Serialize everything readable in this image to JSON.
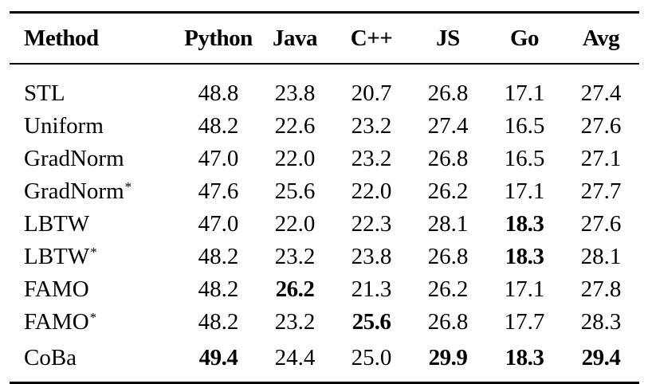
{
  "table": {
    "columns": [
      "Method",
      "Python",
      "Java",
      "C++",
      "JS",
      "Go",
      "Avg"
    ],
    "rows": [
      {
        "method": "STL",
        "star": "",
        "values": [
          "48.8",
          "23.8",
          "20.7",
          "26.8",
          "17.1",
          "27.4"
        ],
        "bold": [
          false,
          false,
          false,
          false,
          false,
          false
        ]
      },
      {
        "method": "Uniform",
        "star": "",
        "values": [
          "48.2",
          "22.6",
          "23.2",
          "27.4",
          "16.5",
          "27.6"
        ],
        "bold": [
          false,
          false,
          false,
          false,
          false,
          false
        ]
      },
      {
        "method": "GradNorm",
        "star": "",
        "values": [
          "47.0",
          "22.0",
          "23.2",
          "26.8",
          "16.5",
          "27.1"
        ],
        "bold": [
          false,
          false,
          false,
          false,
          false,
          false
        ]
      },
      {
        "method": "GradNorm",
        "star": "*",
        "values": [
          "47.6",
          "25.6",
          "22.0",
          "26.2",
          "17.1",
          "27.7"
        ],
        "bold": [
          false,
          false,
          false,
          false,
          false,
          false
        ]
      },
      {
        "method": "LBTW",
        "star": "",
        "values": [
          "47.0",
          "22.0",
          "22.3",
          "28.1",
          "18.3",
          "27.6"
        ],
        "bold": [
          false,
          false,
          false,
          false,
          true,
          false
        ]
      },
      {
        "method": "LBTW",
        "star": "*",
        "values": [
          "48.2",
          "23.2",
          "23.8",
          "26.8",
          "18.3",
          "28.1"
        ],
        "bold": [
          false,
          false,
          false,
          false,
          true,
          false
        ]
      },
      {
        "method": "FAMO",
        "star": "",
        "values": [
          "48.2",
          "26.2",
          "21.3",
          "26.2",
          "17.1",
          "27.8"
        ],
        "bold": [
          false,
          true,
          false,
          false,
          false,
          false
        ]
      },
      {
        "method": "FAMO",
        "star": "*",
        "values": [
          "48.2",
          "23.2",
          "25.6",
          "26.8",
          "17.7",
          "28.3"
        ],
        "bold": [
          false,
          false,
          true,
          false,
          false,
          false
        ]
      },
      {
        "method": "CoBa",
        "star": "",
        "values": [
          "49.4",
          "24.4",
          "25.0",
          "29.9",
          "18.3",
          "29.4"
        ],
        "bold": [
          true,
          false,
          false,
          true,
          true,
          true
        ]
      }
    ]
  }
}
